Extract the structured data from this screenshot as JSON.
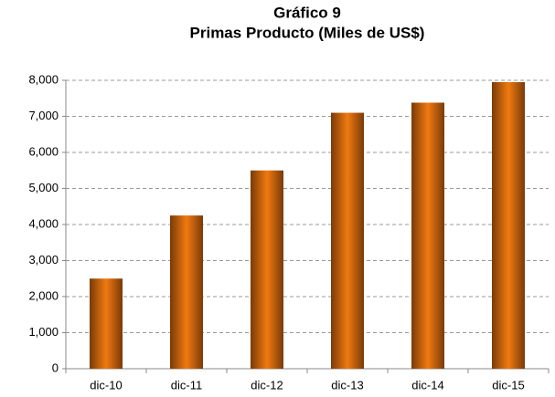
{
  "chart_data": {
    "type": "bar",
    "title": "Gráfico 9",
    "subtitle": "Primas Producto (Miles de US$)",
    "categories": [
      "dic-10",
      "dic-11",
      "dic-12",
      "dic-13",
      "dic-14",
      "dic-15"
    ],
    "values": [
      2500,
      4250,
      5500,
      7100,
      7380,
      7950
    ],
    "color": "#e07010",
    "ylim": [
      0,
      8000
    ],
    "yticks": [
      0,
      {
        "value": 1000,
        "label": "1,000"
      },
      {
        "value": 2000,
        "label": "2,000"
      },
      {
        "value": 3000,
        "label": "3,000"
      },
      {
        "value": 4000,
        "label": "4,000"
      },
      {
        "value": 5000,
        "label": "5,000"
      },
      {
        "value": 6000,
        "label": "6,000"
      },
      {
        "value": 7000,
        "label": "7,000"
      },
      {
        "value": 8000,
        "label": "8,000"
      }
    ],
    "grid": true
  }
}
